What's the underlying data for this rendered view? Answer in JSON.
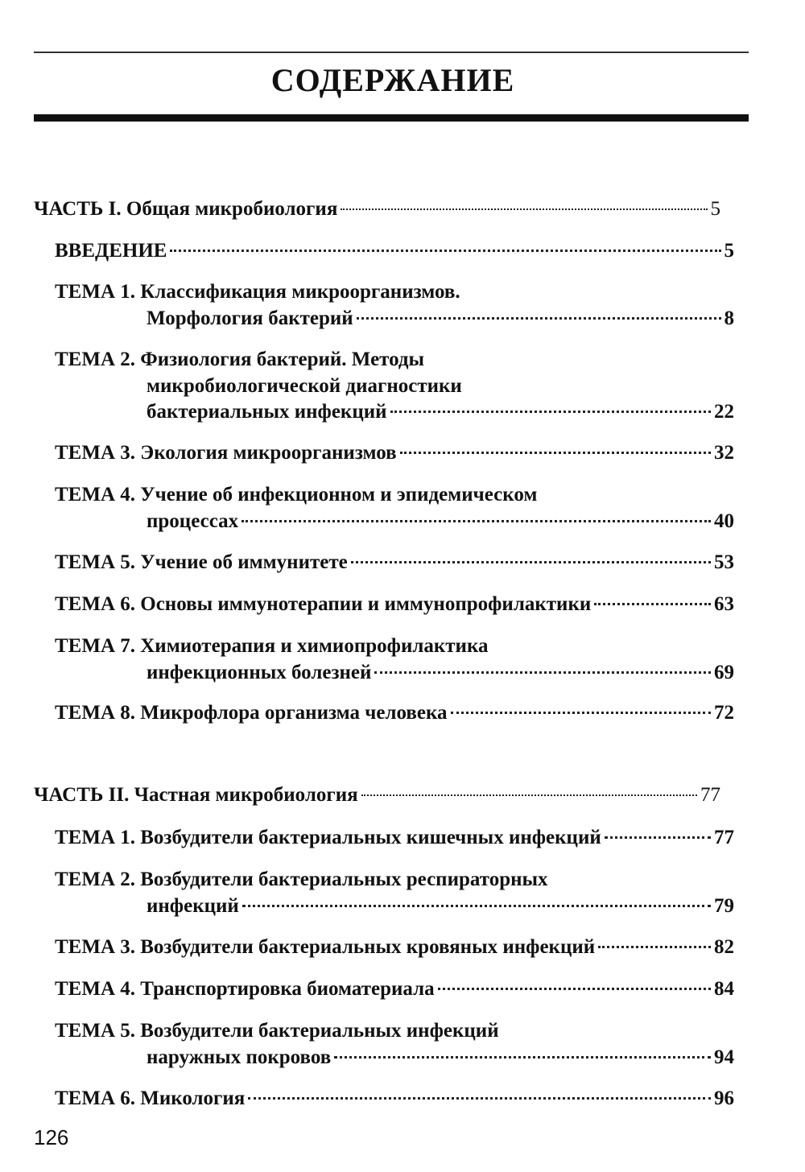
{
  "title": "СОДЕРЖАНИЕ",
  "entries": [
    {
      "kind": "part",
      "lines": [
        "ЧАСТЬ I. Общая микробиология"
      ],
      "page": "5"
    },
    {
      "kind": "theme",
      "lines": [
        "ВВЕДЕНИЕ"
      ],
      "page": "5"
    },
    {
      "kind": "theme",
      "lines": [
        "ТЕМА 1. Классификация микроорганизмов.",
        "Морфология бактерий"
      ],
      "page": "8"
    },
    {
      "kind": "theme",
      "lines": [
        "ТЕМА 2. Физиология бактерий. Методы",
        "микробиологической диагностики",
        "бактериальных инфекций"
      ],
      "page": "22"
    },
    {
      "kind": "theme",
      "lines": [
        "ТЕМА 3. Экология микроорганизмов"
      ],
      "page": "32"
    },
    {
      "kind": "theme",
      "lines": [
        "ТЕМА 4. Учение об инфекционном и эпидемическом",
        "процессах"
      ],
      "page": "40"
    },
    {
      "kind": "theme",
      "lines": [
        "ТЕМА 5. Учение об иммунитете"
      ],
      "page": "53"
    },
    {
      "kind": "theme",
      "lines": [
        "ТЕМА 6. Основы иммунотерапии и иммунопрофилактики"
      ],
      "page": "63"
    },
    {
      "kind": "theme",
      "lines": [
        "ТЕМА 7. Химиотерапия и химиопрофилактика",
        "инфекционных болезней"
      ],
      "page": "69"
    },
    {
      "kind": "theme",
      "lines": [
        "ТЕМА 8. Микрофлора организма человека"
      ],
      "page": "72"
    },
    {
      "kind": "part",
      "lines": [
        "ЧАСТЬ II. Частная микробиология"
      ],
      "page": "77"
    },
    {
      "kind": "theme",
      "lines": [
        "ТЕМА 1. Возбудители бактериальных кишечных инфекций"
      ],
      "page": "77"
    },
    {
      "kind": "theme",
      "lines": [
        "ТЕМА 2. Возбудители бактериальных респираторных",
        "инфекций"
      ],
      "page": "79"
    },
    {
      "kind": "theme",
      "lines": [
        "ТЕМА 3. Возбудители бактериальных кровяных инфекций"
      ],
      "page": "82"
    },
    {
      "kind": "theme",
      "lines": [
        "ТЕМА 4. Транспортировка биоматериала"
      ],
      "page": "84"
    },
    {
      "kind": "theme",
      "lines": [
        "ТЕМА 5. Возбудители бактериальных инфекций",
        "наружных покровов"
      ],
      "page": "94"
    },
    {
      "kind": "theme",
      "lines": [
        "ТЕМА 6. Микология"
      ],
      "page": "96"
    }
  ],
  "page_number": "126"
}
